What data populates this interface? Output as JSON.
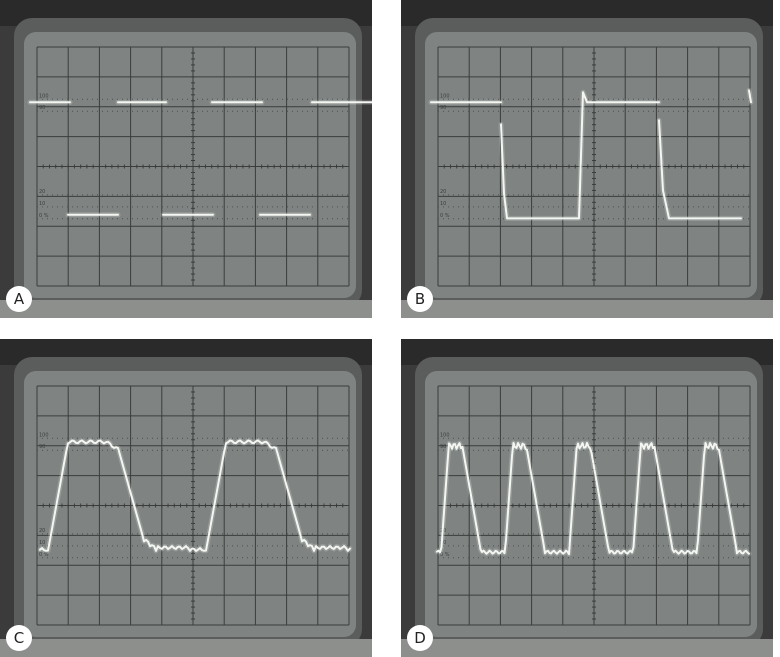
{
  "panels": [
    {
      "id": "A",
      "label": "A",
      "trace": "A"
    },
    {
      "id": "B",
      "label": "B",
      "trace": "B"
    },
    {
      "id": "C",
      "label": "C",
      "trace": "C"
    },
    {
      "id": "D",
      "label": "D",
      "trace": "D"
    }
  ],
  "graticule_labels": {
    "top": "100",
    "upper": "90",
    "lower_a": "20",
    "lower_b": "10",
    "zero": "0 %"
  },
  "colors": {
    "bezel": "#4a4a4a",
    "screen": "#7f8482",
    "grid": "#3a3d3c",
    "trace": "#f4f6f2"
  }
}
